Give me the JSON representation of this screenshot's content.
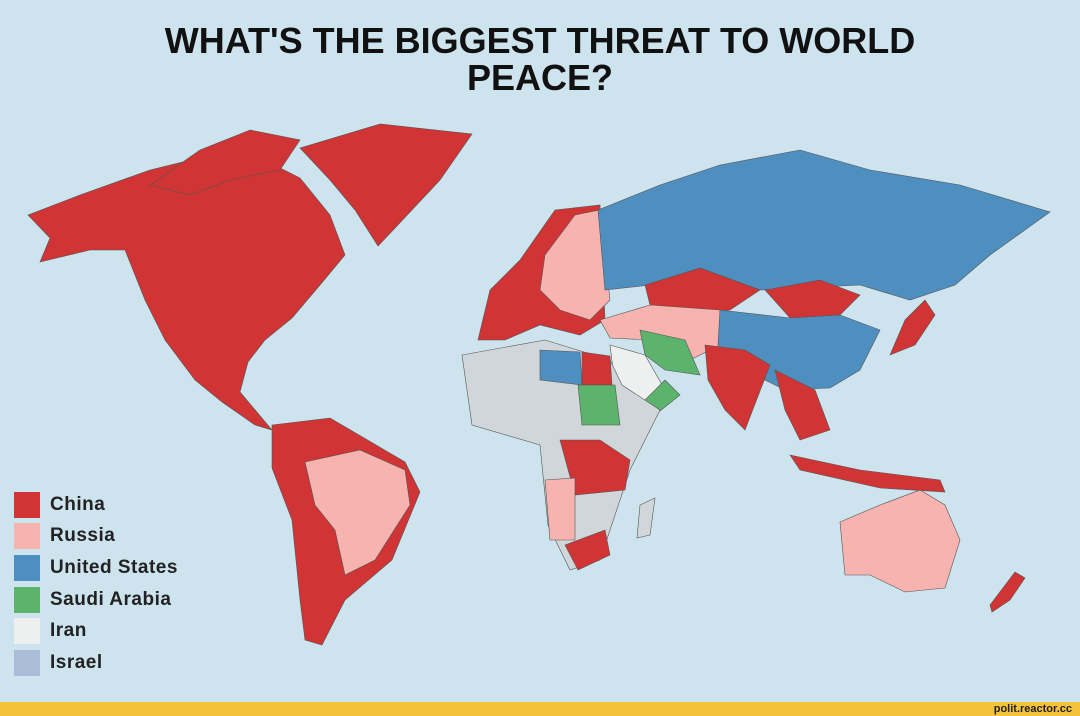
{
  "title": "WHAT'S THE BIGGEST THREAT TO WORLD PEACE?",
  "legend": [
    {
      "label": "China",
      "color": "#d03434"
    },
    {
      "label": "Russia",
      "color": "#f7b3b0"
    },
    {
      "label": "United States",
      "color": "#4e8fbf"
    },
    {
      "label": "Saudi Arabia",
      "color": "#5cb36b"
    },
    {
      "label": "Iran",
      "color": "#eef0f0"
    },
    {
      "label": "Israel",
      "color": "#a9bcd8"
    }
  ],
  "footer": "polit.reactor.cc"
}
